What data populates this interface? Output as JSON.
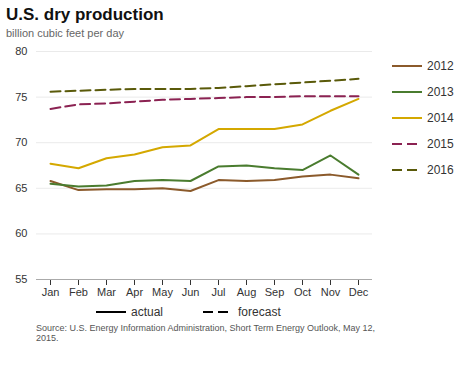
{
  "chart_data": {
    "type": "line",
    "title": "U.S. dry production",
    "subtitle": "billion cubic feet per day",
    "source": "Source: U.S. Energy Information Administration, Short Term Energy Outlook, May 12,\n2015.",
    "categories": [
      "Jan",
      "Feb",
      "Mar",
      "Apr",
      "May",
      "Jun",
      "Jul",
      "Aug",
      "Sep",
      "Oct",
      "Nov",
      "Dec"
    ],
    "series": [
      {
        "name": "2012",
        "color": "#8B5A2B",
        "line_style": "solid",
        "values": [
          65.8,
          64.8,
          64.9,
          64.9,
          65.0,
          64.7,
          65.9,
          65.8,
          65.9,
          66.3,
          66.5,
          66.1
        ]
      },
      {
        "name": "2013",
        "color": "#4a7c2f",
        "line_style": "solid",
        "values": [
          65.5,
          65.2,
          65.3,
          65.8,
          65.9,
          65.8,
          67.4,
          67.5,
          67.2,
          67.0,
          68.6,
          66.5
        ]
      },
      {
        "name": "2014",
        "color": "#d4a800",
        "line_style": "solid",
        "values": [
          67.7,
          67.2,
          68.3,
          68.7,
          69.5,
          69.7,
          71.5,
          71.5,
          71.5,
          72.0,
          73.5,
          74.8
        ]
      },
      {
        "name": "2015",
        "color": "#8B2252",
        "line_style": "dashed",
        "values": [
          73.7,
          74.2,
          74.3,
          74.5,
          74.7,
          74.8,
          74.9,
          75.0,
          75.0,
          75.1,
          75.1,
          75.1
        ]
      },
      {
        "name": "2016",
        "color": "#5a5a0a",
        "line_style": "dashed",
        "values": [
          75.6,
          75.7,
          75.8,
          75.9,
          75.9,
          75.9,
          76.0,
          76.2,
          76.4,
          76.6,
          76.8,
          77.0
        ]
      }
    ],
    "annotations": [
      {
        "text": "actual",
        "line_style": "solid"
      },
      {
        "text": "forecast",
        "line_style": "dashed"
      }
    ],
    "ylim": [
      55,
      80
    ],
    "yticks": [
      55,
      60,
      65,
      70,
      75,
      80
    ],
    "grid": true,
    "legend": "right"
  }
}
